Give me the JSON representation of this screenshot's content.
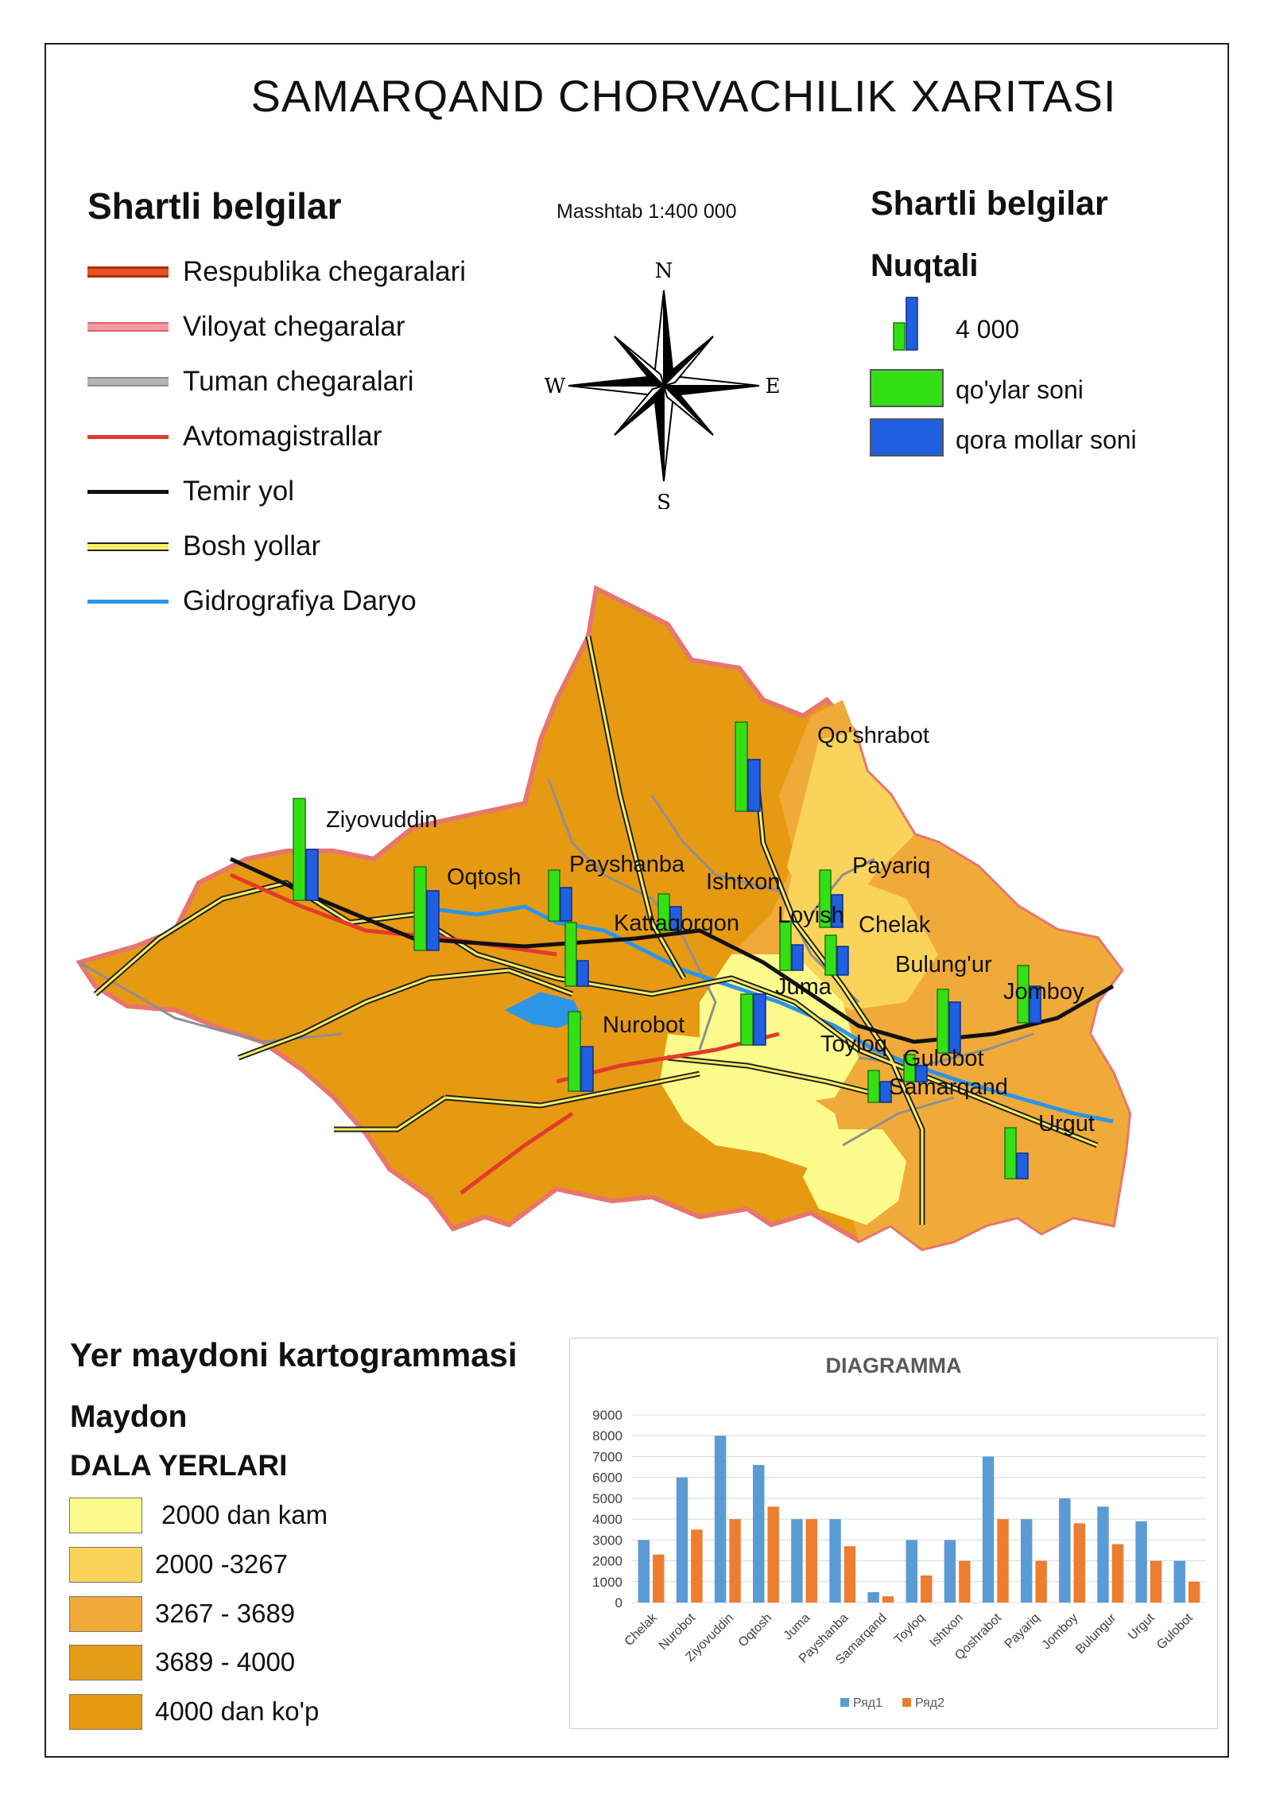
{
  "title": "SAMARQAND CHORVACHILIK XARITASI",
  "scale": "Masshtab  1:400 000",
  "legend_left": {
    "heading": "Shartli belgilar",
    "items": [
      {
        "label": "Respublika chegaralari",
        "icon": "republic-border-line"
      },
      {
        "label": "Viloyat chegaralar",
        "icon": "region-border-line"
      },
      {
        "label": "Tuman chegaralari",
        "icon": "district-border-line"
      },
      {
        "label": "Avtomagistrallar",
        "icon": "highway-line"
      },
      {
        "label": "Temir yol",
        "icon": "railway-line"
      },
      {
        "label": "Bosh yollar",
        "icon": "main-road-line"
      },
      {
        "label": "Gidrografiya Daryo",
        "icon": "river-line"
      }
    ]
  },
  "compass": {
    "n": "N",
    "s": "S",
    "e": "E",
    "w": "W"
  },
  "legend_right": {
    "heading": "Shartli belgilar",
    "subheading": "Nuqtali",
    "value_label": "4 000",
    "sheep_label": "qo'ylar soni",
    "cattle_label": "qora mollar soni",
    "sheep_color": "#33e014",
    "cattle_color": "#1f5fe0"
  },
  "map_labels": [
    "Qo'shrabot",
    "Ziyovuddin",
    "Oqtosh",
    "Payshanba",
    "Ishtxon",
    "Payariq",
    "Kattaqorgon",
    "Loyish",
    "Chelak",
    "Bulung'ur",
    "Juma",
    "Jomboy",
    "Nurobot",
    "Toyloq",
    "Gulobot",
    "Samarqand",
    "Urgut"
  ],
  "cartogram": {
    "title": "Yer maydoni kartogrammasi",
    "subtitle": "Maydon",
    "category": "DALA YERLARI",
    "classes": [
      {
        "label": "2000 dan kam",
        "color": "#fdfb8c"
      },
      {
        "label": "2000 -3267",
        "color": "#fad35a"
      },
      {
        "label": "3267 - 3689",
        "color": "#f0aa3a"
      },
      {
        "label": "3689 - 4000",
        "color": "#e39d18"
      },
      {
        "label": "4000 dan ko'p",
        "color": "#e69a12"
      }
    ]
  },
  "chart_data": {
    "type": "bar",
    "title": "DIAGRAMMA",
    "categories": [
      "Chelak",
      "Nurobot",
      "Ziyovuddin",
      "Oqtosh",
      "Juma",
      "Payshanba",
      "Samarqand",
      "Toyloq",
      "Ishtxon",
      "Qoshrabot",
      "Payariq",
      "Jomboy",
      "Bulungur",
      "Urgut",
      "Gulobot"
    ],
    "series": [
      {
        "name": "Ряд1",
        "color": "#5b9bd5",
        "values": [
          3000,
          6000,
          8000,
          6600,
          4000,
          4000,
          500,
          3000,
          3000,
          7000,
          4000,
          5000,
          4600,
          3900,
          2000
        ]
      },
      {
        "name": "Ряд2",
        "color": "#ed7d31",
        "values": [
          2300,
          3500,
          4000,
          4600,
          4000,
          2700,
          300,
          1300,
          2000,
          4000,
          2000,
          3800,
          2800,
          2000,
          1000
        ]
      }
    ],
    "ylim": [
      0,
      9000
    ],
    "yticks": [
      0,
      1000,
      2000,
      3000,
      4000,
      5000,
      6000,
      7000,
      8000,
      9000
    ],
    "grid": true,
    "legend": "bottom"
  }
}
